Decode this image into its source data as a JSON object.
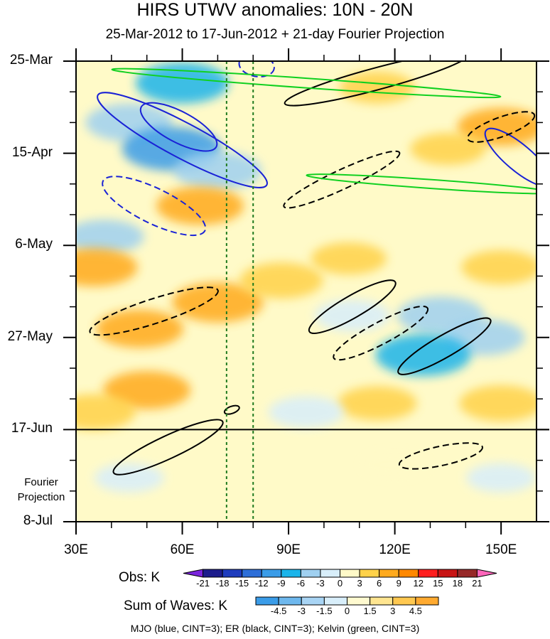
{
  "title": "HIRS UTWV anomalies: 10N - 20N",
  "subtitle": "25-Mar-2012 to 17-Jun-2012 + 21-day Fourier Projection",
  "projection_label": [
    "Fourier",
    "Projection"
  ],
  "footer": "MJO (blue, CINT=3); ER (black, CINT=3); Kelvin (green, CINT=3)",
  "colorbars": {
    "obs": {
      "title": "Obs: K",
      "ticks": [
        "-21",
        "-18",
        "-15",
        "-12",
        "-9",
        "-6",
        "-3",
        "0",
        "3",
        "6",
        "9",
        "12",
        "15",
        "18",
        "21"
      ],
      "colors": [
        "#7a24dc",
        "#1c1c8c",
        "#1e3cbe",
        "#2d6ed8",
        "#3a9ce8",
        "#1ab4ea",
        "#9fd0f0",
        "#d8eefa",
        "#fffac8",
        "#ffd24a",
        "#ffaa1e",
        "#ff8800",
        "#ff1e1e",
        "#c81414",
        "#962828",
        "#ff66bb"
      ]
    },
    "waves": {
      "title": "Sum of Waves: K",
      "ticks": [
        "-4.5",
        "-3",
        "-1.5",
        "0",
        "1.5",
        "3",
        "4.5"
      ],
      "colors": [
        "#3a9ce8",
        "#6eb8ee",
        "#a8d4f4",
        "#d8eefa",
        "#fffad0",
        "#ffe590",
        "#ffc850",
        "#ffaa30"
      ]
    }
  },
  "chart_data": {
    "type": "heatmap",
    "xlabel": "",
    "ylabel": "",
    "x_ticks": [
      "30E",
      "60E",
      "90E",
      "120E",
      "150E"
    ],
    "x_tick_values": [
      30,
      60,
      90,
      120,
      150
    ],
    "xlim": [
      30,
      160
    ],
    "y_ticks": [
      "25-Mar",
      "15-Apr",
      "6-May",
      "27-May",
      "17-Jun",
      "8-Jul"
    ],
    "y_tick_values": [
      0,
      21,
      42,
      63,
      84,
      105
    ],
    "ylim": [
      0,
      105
    ],
    "observation_end_line": "17-Jun",
    "reference_longitudes": [
      72.5,
      80
    ],
    "anomaly_patches": [
      {
        "lon": 60,
        "day": 5,
        "value": -7.5
      },
      {
        "lon": 45,
        "day": 14,
        "value": -6
      },
      {
        "lon": 57,
        "day": 20,
        "value": -12
      },
      {
        "lon": 70,
        "day": 25,
        "value": -6
      },
      {
        "lon": 38,
        "day": 40,
        "value": -4
      },
      {
        "lon": 115,
        "day": 6,
        "value": 3
      },
      {
        "lon": 150,
        "day": 15,
        "value": 6
      },
      {
        "lon": 135,
        "day": 20,
        "value": 3
      },
      {
        "lon": 65,
        "day": 33,
        "value": 6
      },
      {
        "lon": 35,
        "day": 47,
        "value": 6
      },
      {
        "lon": 70,
        "day": 55,
        "value": 7
      },
      {
        "lon": 88,
        "day": 50,
        "value": 5
      },
      {
        "lon": 107,
        "day": 45,
        "value": 3
      },
      {
        "lon": 150,
        "day": 47,
        "value": 4
      },
      {
        "lon": 48,
        "day": 61,
        "value": 6
      },
      {
        "lon": 108,
        "day": 58,
        "value": -3
      },
      {
        "lon": 133,
        "day": 58,
        "value": -6
      },
      {
        "lon": 145,
        "day": 63,
        "value": -5
      },
      {
        "lon": 128,
        "day": 67,
        "value": -8
      },
      {
        "lon": 50,
        "day": 75,
        "value": 6
      },
      {
        "lon": 35,
        "day": 80,
        "value": 5
      },
      {
        "lon": 115,
        "day": 78,
        "value": 4
      },
      {
        "lon": 150,
        "day": 78,
        "value": 5
      },
      {
        "lon": 95,
        "day": 80,
        "value": -3
      },
      {
        "lon": 45,
        "day": 95,
        "value": -1.5
      },
      {
        "lon": 120,
        "day": 92,
        "value": 1.5
      },
      {
        "lon": 150,
        "day": 95,
        "value": -1.5
      }
    ],
    "wave_contours": [
      {
        "wave": "MJO",
        "color": "blue",
        "sign": "negative",
        "cx": 60,
        "cy": 18,
        "rx": 27,
        "ry": 4,
        "angle": 28
      },
      {
        "wave": "MJO",
        "color": "blue",
        "sign": "negative",
        "cx": 59,
        "cy": 15,
        "rx": 12,
        "ry": 3.5,
        "angle": 28
      },
      {
        "wave": "MJO",
        "color": "blue",
        "sign": "positive",
        "cx": 52,
        "cy": 33,
        "rx": 16,
        "ry": 4,
        "angle": 26
      },
      {
        "wave": "MJO",
        "color": "blue",
        "sign": "positive",
        "cx": 81,
        "cy": 1,
        "rx": 5,
        "ry": 2.5,
        "angle": 10
      },
      {
        "wave": "MJO",
        "color": "blue",
        "sign": "negative",
        "cx": 155,
        "cy": 22,
        "rx": 12,
        "ry": 3,
        "angle": 40
      },
      {
        "wave": "ER",
        "color": "black",
        "sign": "negative",
        "cx": 115,
        "cy": 4,
        "rx": 27,
        "ry": 2.5,
        "angle": -15
      },
      {
        "wave": "ER",
        "color": "black",
        "sign": "positive",
        "cx": 105,
        "cy": 27,
        "rx": 18,
        "ry": 2.2,
        "angle": -25
      },
      {
        "wave": "ER",
        "color": "black",
        "sign": "positive",
        "cx": 150,
        "cy": 15,
        "rx": 10,
        "ry": 2.2,
        "angle": -20
      },
      {
        "wave": "ER",
        "color": "black",
        "sign": "negative",
        "cx": 108,
        "cy": 56,
        "rx": 14,
        "ry": 2.5,
        "angle": -30
      },
      {
        "wave": "ER",
        "color": "black",
        "sign": "positive",
        "cx": 116,
        "cy": 62,
        "rx": 15,
        "ry": 2.5,
        "angle": -28
      },
      {
        "wave": "ER",
        "color": "black",
        "sign": "negative",
        "cx": 134,
        "cy": 65,
        "rx": 15,
        "ry": 2.5,
        "angle": -30
      },
      {
        "wave": "ER",
        "color": "black",
        "sign": "positive",
        "cx": 52,
        "cy": 57,
        "rx": 19,
        "ry": 2.8,
        "angle": -18
      },
      {
        "wave": "ER",
        "color": "black",
        "sign": "negative",
        "cx": 56,
        "cy": 88,
        "rx": 17,
        "ry": 2.6,
        "angle": -25
      },
      {
        "wave": "ER",
        "color": "black",
        "sign": "positive",
        "cx": 133,
        "cy": 90,
        "rx": 12,
        "ry": 2.2,
        "angle": -12
      },
      {
        "wave": "ER",
        "color": "black",
        "sign": "negative",
        "cx": 74,
        "cy": 79.5,
        "rx": 2.2,
        "ry": 0.8,
        "angle": -20
      },
      {
        "wave": "Kelvin",
        "color": "green",
        "sign": "negative",
        "cx": 95,
        "cy": 5,
        "rx": 55,
        "ry": 1.1,
        "angle": 4
      },
      {
        "wave": "Kelvin",
        "color": "green",
        "sign": "negative",
        "cx": 130,
        "cy": 28,
        "rx": 35,
        "ry": 1,
        "angle": 4
      }
    ]
  }
}
